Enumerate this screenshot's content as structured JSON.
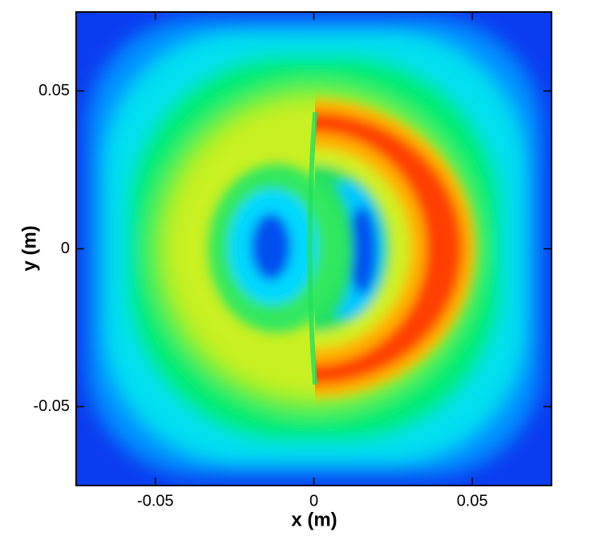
{
  "chart_data": {
    "type": "contour",
    "xlabel": "x (m)",
    "ylabel": "y (m)",
    "xlim": [
      -0.075,
      0.075
    ],
    "ylim": [
      -0.075,
      0.075
    ],
    "xticks": [
      -0.05,
      0,
      0.05
    ],
    "yticks": [
      -0.05,
      0,
      0.05
    ]
  }
}
